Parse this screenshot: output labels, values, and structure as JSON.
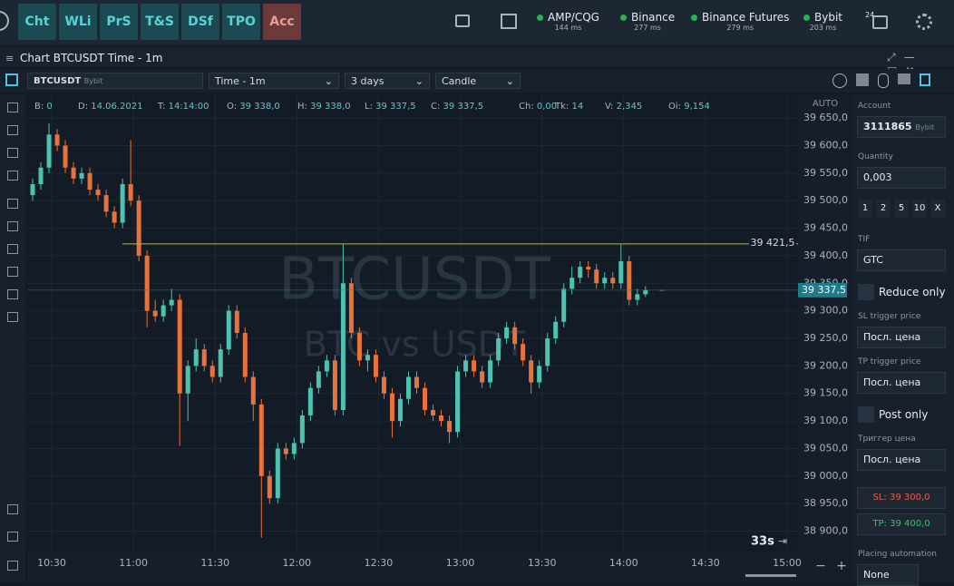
{
  "ui": {
    "buttons": [
      "Cht",
      "WLi",
      "PrS",
      "T&S",
      "DSf",
      "TPO",
      "Acc"
    ],
    "connections": [
      {
        "name": "AMP/CQG",
        "ms": "144 ms"
      },
      {
        "name": "Binance",
        "ms": "277 ms"
      },
      {
        "name": "Binance Futures",
        "ms": "279 ms"
      },
      {
        "name": "Bybit",
        "ms": "203 ms"
      }
    ],
    "badge": "24",
    "window_title": "Chart BTCUSDT Time - 1m",
    "symbol": "BTCUSDT",
    "exchange": "Bybit",
    "timeframe": "Time - 1m",
    "period": "3 days",
    "style": "Candle",
    "info": [
      {
        "label": "B:",
        "value": "0"
      },
      {
        "label": "D:",
        "value": "14.06.2021"
      },
      {
        "label": "T:",
        "value": "14:14:00"
      },
      {
        "label": "O:",
        "value": "39 338,0"
      },
      {
        "label": "H:",
        "value": "39 338,0"
      },
      {
        "label": "L:",
        "value": "39 337,5"
      },
      {
        "label": "C:",
        "value": "39 337,5"
      },
      {
        "label": "Ch:",
        "value": "0,00"
      },
      {
        "label": "Tk:",
        "value": "14"
      },
      {
        "label": "V:",
        "value": "2,345"
      },
      {
        "label": "Oi:",
        "value": "9,154"
      }
    ],
    "auto": "AUTO",
    "timer": "33s",
    "panel": {
      "account_label": "Account",
      "account": "3111865",
      "account_exchange": "Bybit",
      "quantity_label": "Quantity",
      "quantity": "0,003",
      "quick": [
        "1",
        "2",
        "5",
        "10",
        "X"
      ],
      "tif_label": "TIF",
      "tif": "GTC",
      "reduce_only": "Reduce only",
      "sl_trigger_label": "SL trigger price",
      "sl_trigger": "Посл. цена",
      "tp_trigger_label": "TP trigger price",
      "tp_trigger": "Посл. цена",
      "post_only": "Post only",
      "trigger_label": "Триггер цена",
      "trigger": "Посл. цена",
      "sl": "SL: 39 300,0",
      "tp": "TP: 39 400,0",
      "automation_label": "Placing automation",
      "automation": "None"
    }
  },
  "chart_data": {
    "type": "candlestick",
    "watermark": "BTCUSDT",
    "watermark_sub": "BTC vs USDT",
    "x": [
      "10:23",
      "10:26",
      "10:29",
      "10:32",
      "10:35",
      "10:38",
      "10:41",
      "10:44",
      "10:47",
      "10:50",
      "10:53",
      "10:56",
      "10:59",
      "11:02",
      "11:05",
      "11:08",
      "11:11",
      "11:14",
      "11:17",
      "11:20",
      "11:23",
      "11:26",
      "11:29",
      "11:32",
      "11:35",
      "11:38",
      "11:41",
      "11:44",
      "11:47",
      "11:50",
      "11:53",
      "11:56",
      "11:59",
      "12:02",
      "12:05",
      "12:08",
      "12:11",
      "12:14",
      "12:17",
      "12:20",
      "12:23",
      "12:26",
      "12:29",
      "12:32",
      "12:35",
      "12:38",
      "12:41",
      "12:44",
      "12:47",
      "12:50",
      "12:53",
      "12:56",
      "12:59",
      "13:02",
      "13:05",
      "13:08",
      "13:11",
      "13:14",
      "13:17",
      "13:20",
      "13:23",
      "13:26",
      "13:29",
      "13:32",
      "13:35",
      "13:38",
      "13:41",
      "13:44",
      "13:47",
      "13:50",
      "13:53",
      "13:56",
      "13:59",
      "14:02",
      "14:05",
      "14:08",
      "14:14"
    ],
    "open": [
      39510,
      39530,
      39560,
      39620,
      39600,
      39560,
      39540,
      39550,
      39520,
      39510,
      39480,
      39460,
      39530,
      39500,
      39400,
      39300,
      39290,
      39310,
      39320,
      39150,
      39200,
      39230,
      39200,
      39180,
      39230,
      39300,
      39260,
      39180,
      39130,
      39000,
      38960,
      39050,
      39040,
      39060,
      39110,
      39160,
      39190,
      39210,
      39120,
      39350,
      39260,
      39210,
      39220,
      39180,
      39150,
      39100,
      39140,
      39180,
      39160,
      39120,
      39110,
      39100,
      39080,
      39190,
      39210,
      39190,
      39170,
      39210,
      39250,
      39270,
      39240,
      39210,
      39170,
      39200,
      39250,
      39280,
      39340,
      39360,
      39380,
      39375,
      39350,
      39360,
      39350,
      39390,
      39320,
      39330,
      39338
    ],
    "high": [
      39540,
      39570,
      39640,
      39630,
      39610,
      39570,
      39560,
      39560,
      39530,
      39520,
      39490,
      39540,
      39610,
      39510,
      39410,
      39320,
      39320,
      39340,
      39330,
      39210,
      39250,
      39240,
      39210,
      39240,
      39310,
      39310,
      39270,
      39190,
      39140,
      39010,
      39060,
      39060,
      39070,
      39120,
      39170,
      39200,
      39220,
      39220,
      39422,
      39360,
      39270,
      39230,
      39230,
      39190,
      39160,
      39150,
      39190,
      39190,
      39170,
      39130,
      39120,
      39110,
      39200,
      39220,
      39220,
      39200,
      39220,
      39260,
      39280,
      39280,
      39250,
      39220,
      39210,
      39260,
      39290,
      39350,
      39380,
      39390,
      39390,
      39385,
      39370,
      39370,
      39421.5,
      39400,
      39340,
      39345,
      39338
    ],
    "low": [
      39500,
      39520,
      39550,
      39590,
      39550,
      39530,
      39530,
      39510,
      39500,
      39470,
      39450,
      39450,
      39490,
      39390,
      39270,
      39280,
      39280,
      39300,
      39055,
      39100,
      39190,
      39190,
      39170,
      39170,
      39220,
      39250,
      39170,
      39100,
      38888,
      38950,
      38950,
      39030,
      39030,
      39050,
      39100,
      39150,
      39180,
      39110,
      39110,
      39250,
      39200,
      39190,
      39170,
      39140,
      39070,
      39090,
      39130,
      39150,
      39110,
      39100,
      39090,
      39060,
      39070,
      39180,
      39180,
      39160,
      39160,
      39200,
      39240,
      39230,
      39200,
      39150,
      39160,
      39190,
      39240,
      39270,
      39330,
      39350,
      39360,
      39340,
      39340,
      39340,
      39340,
      39310,
      39310,
      39325,
      39337.5
    ],
    "close": [
      39530,
      39560,
      39620,
      39600,
      39560,
      39540,
      39550,
      39520,
      39510,
      39480,
      39460,
      39530,
      39500,
      39400,
      39300,
      39290,
      39310,
      39320,
      39150,
      39200,
      39230,
      39200,
      39180,
      39230,
      39300,
      39260,
      39180,
      39130,
      39000,
      38960,
      39050,
      39040,
      39060,
      39110,
      39160,
      39190,
      39210,
      39120,
      39350,
      39260,
      39210,
      39220,
      39180,
      39150,
      39100,
      39140,
      39180,
      39160,
      39120,
      39110,
      39100,
      39080,
      39190,
      39210,
      39190,
      39170,
      39210,
      39250,
      39270,
      39240,
      39210,
      39170,
      39200,
      39250,
      39280,
      39340,
      39360,
      39380,
      39375,
      39350,
      39360,
      39350,
      39390,
      39320,
      39330,
      39338,
      39337.5
    ],
    "up_color": "#4cc2b0",
    "down_color": "#e8733a",
    "xlim": [
      "10:21",
      "15:04"
    ],
    "xticks": [
      "10:30",
      "11:00",
      "11:30",
      "12:00",
      "12:30",
      "13:00",
      "13:30",
      "14:00",
      "14:30",
      "15:00"
    ],
    "ylim": [
      38863,
      39693
    ],
    "yticks": [
      {
        "value": 38900,
        "label": "38 900,0"
      },
      {
        "value": 38950,
        "label": "38 950,0"
      },
      {
        "value": 39000,
        "label": "39 000,0"
      },
      {
        "value": 39050,
        "label": "39 050,0"
      },
      {
        "value": 39100,
        "label": "39 100,0"
      },
      {
        "value": 39150,
        "label": "39 150,0"
      },
      {
        "value": 39200,
        "label": "39 200,0"
      },
      {
        "value": 39250,
        "label": "39 250,0"
      },
      {
        "value": 39300,
        "label": "39 300,0"
      },
      {
        "value": 39350,
        "label": "39 350,0"
      },
      {
        "value": 39400,
        "label": "39 400,0"
      },
      {
        "value": 39450,
        "label": "39 450,0"
      },
      {
        "value": 39500,
        "label": "39 500,0"
      },
      {
        "value": 39550,
        "label": "39 550,0"
      },
      {
        "value": 39600,
        "label": "39 600,0"
      },
      {
        "value": 39650,
        "label": "39 650,0"
      }
    ],
    "hline": {
      "value": 39421.5,
      "label": "39 421,5",
      "color": "#b9b04a"
    },
    "last_price": {
      "value": 39337.5,
      "label": "39 337,5",
      "color": "#1e7d8a"
    },
    "grid": true
  }
}
